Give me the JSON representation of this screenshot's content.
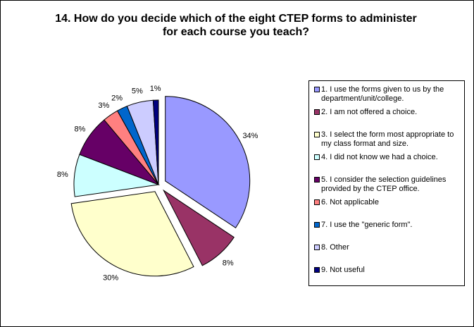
{
  "chart_data": {
    "type": "pie",
    "title": [
      "14. How do you decide which of the eight CTEP forms to administer",
      "for each course you teach?"
    ],
    "slices": [
      {
        "name": "1. I use the forms given to us by the department/unit/college.",
        "value": 34,
        "label": "34%",
        "color": "#9999ff",
        "exploded": true
      },
      {
        "name": "2. I am not offered a choice.",
        "value": 8,
        "label": "8%",
        "color": "#993366",
        "exploded": true
      },
      {
        "name": "3. I select the form most appropriate to my class format and size.",
        "value": 30,
        "label": "30%",
        "color": "#ffffcc",
        "exploded": true
      },
      {
        "name": "4. I did not know we had a choice.",
        "value": 8,
        "label": "8%",
        "color": "#ccffff",
        "exploded": false
      },
      {
        "name": "5. I consider the selection guidelines provided by the CTEP office.",
        "value": 8,
        "label": "8%",
        "color": "#660066",
        "exploded": false
      },
      {
        "name": "6. Not applicable",
        "value": 3,
        "label": "3%",
        "color": "#ff8080",
        "exploded": false
      },
      {
        "name": "7. I use the \"generic form\".",
        "value": 2,
        "label": "2%",
        "color": "#0066cc",
        "exploded": false
      },
      {
        "name": "8. Other",
        "value": 5,
        "label": "5%",
        "color": "#ccccff",
        "exploded": false
      },
      {
        "name": "9. Not useful",
        "value": 1,
        "label": "1%",
        "color": "#000080",
        "exploded": false
      }
    ],
    "legend_position": "right"
  }
}
